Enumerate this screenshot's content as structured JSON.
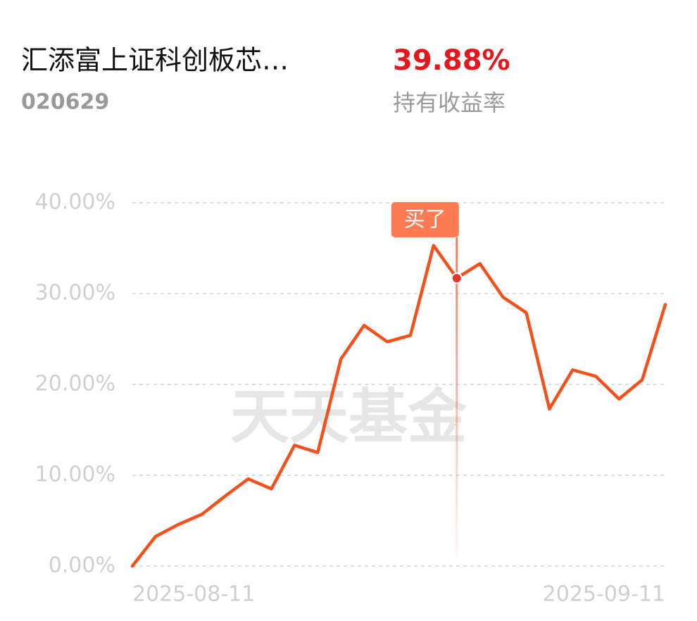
{
  "header": {
    "fund_name": "汇添富上证科创板芯…",
    "fund_code": "020629",
    "return_value": "39.88%",
    "return_label": "持有收益率"
  },
  "chart_data": {
    "type": "line",
    "watermark": "天天基金",
    "categories": [
      "2025-08-11",
      null,
      null,
      null,
      null,
      null,
      null,
      null,
      null,
      null,
      null,
      null,
      null,
      null,
      null,
      null,
      null,
      null,
      null,
      null,
      null,
      null,
      null,
      "2025-09-11"
    ],
    "values": [
      0,
      3.26,
      4.6,
      5.7,
      7.7,
      9.6,
      8.5,
      13.3,
      12.5,
      22.8,
      26.5,
      24.7,
      25.4,
      35.3,
      31.7,
      33.3,
      29.6,
      27.9,
      17.3,
      21.6,
      20.9,
      18.4,
      20.5,
      28.8
    ],
    "color": "#f5501c",
    "ylim": [
      0,
      40
    ],
    "yticks": [
      {
        "value": 0,
        "label": "0.00%"
      },
      {
        "value": 10,
        "label": "10.00%"
      },
      {
        "value": 20,
        "label": "20.00%"
      },
      {
        "value": 30,
        "label": "30.00%"
      },
      {
        "value": 40,
        "label": "40.00%"
      }
    ],
    "grid": true,
    "annotations": [
      {
        "text": "买了",
        "point": 14
      }
    ]
  }
}
